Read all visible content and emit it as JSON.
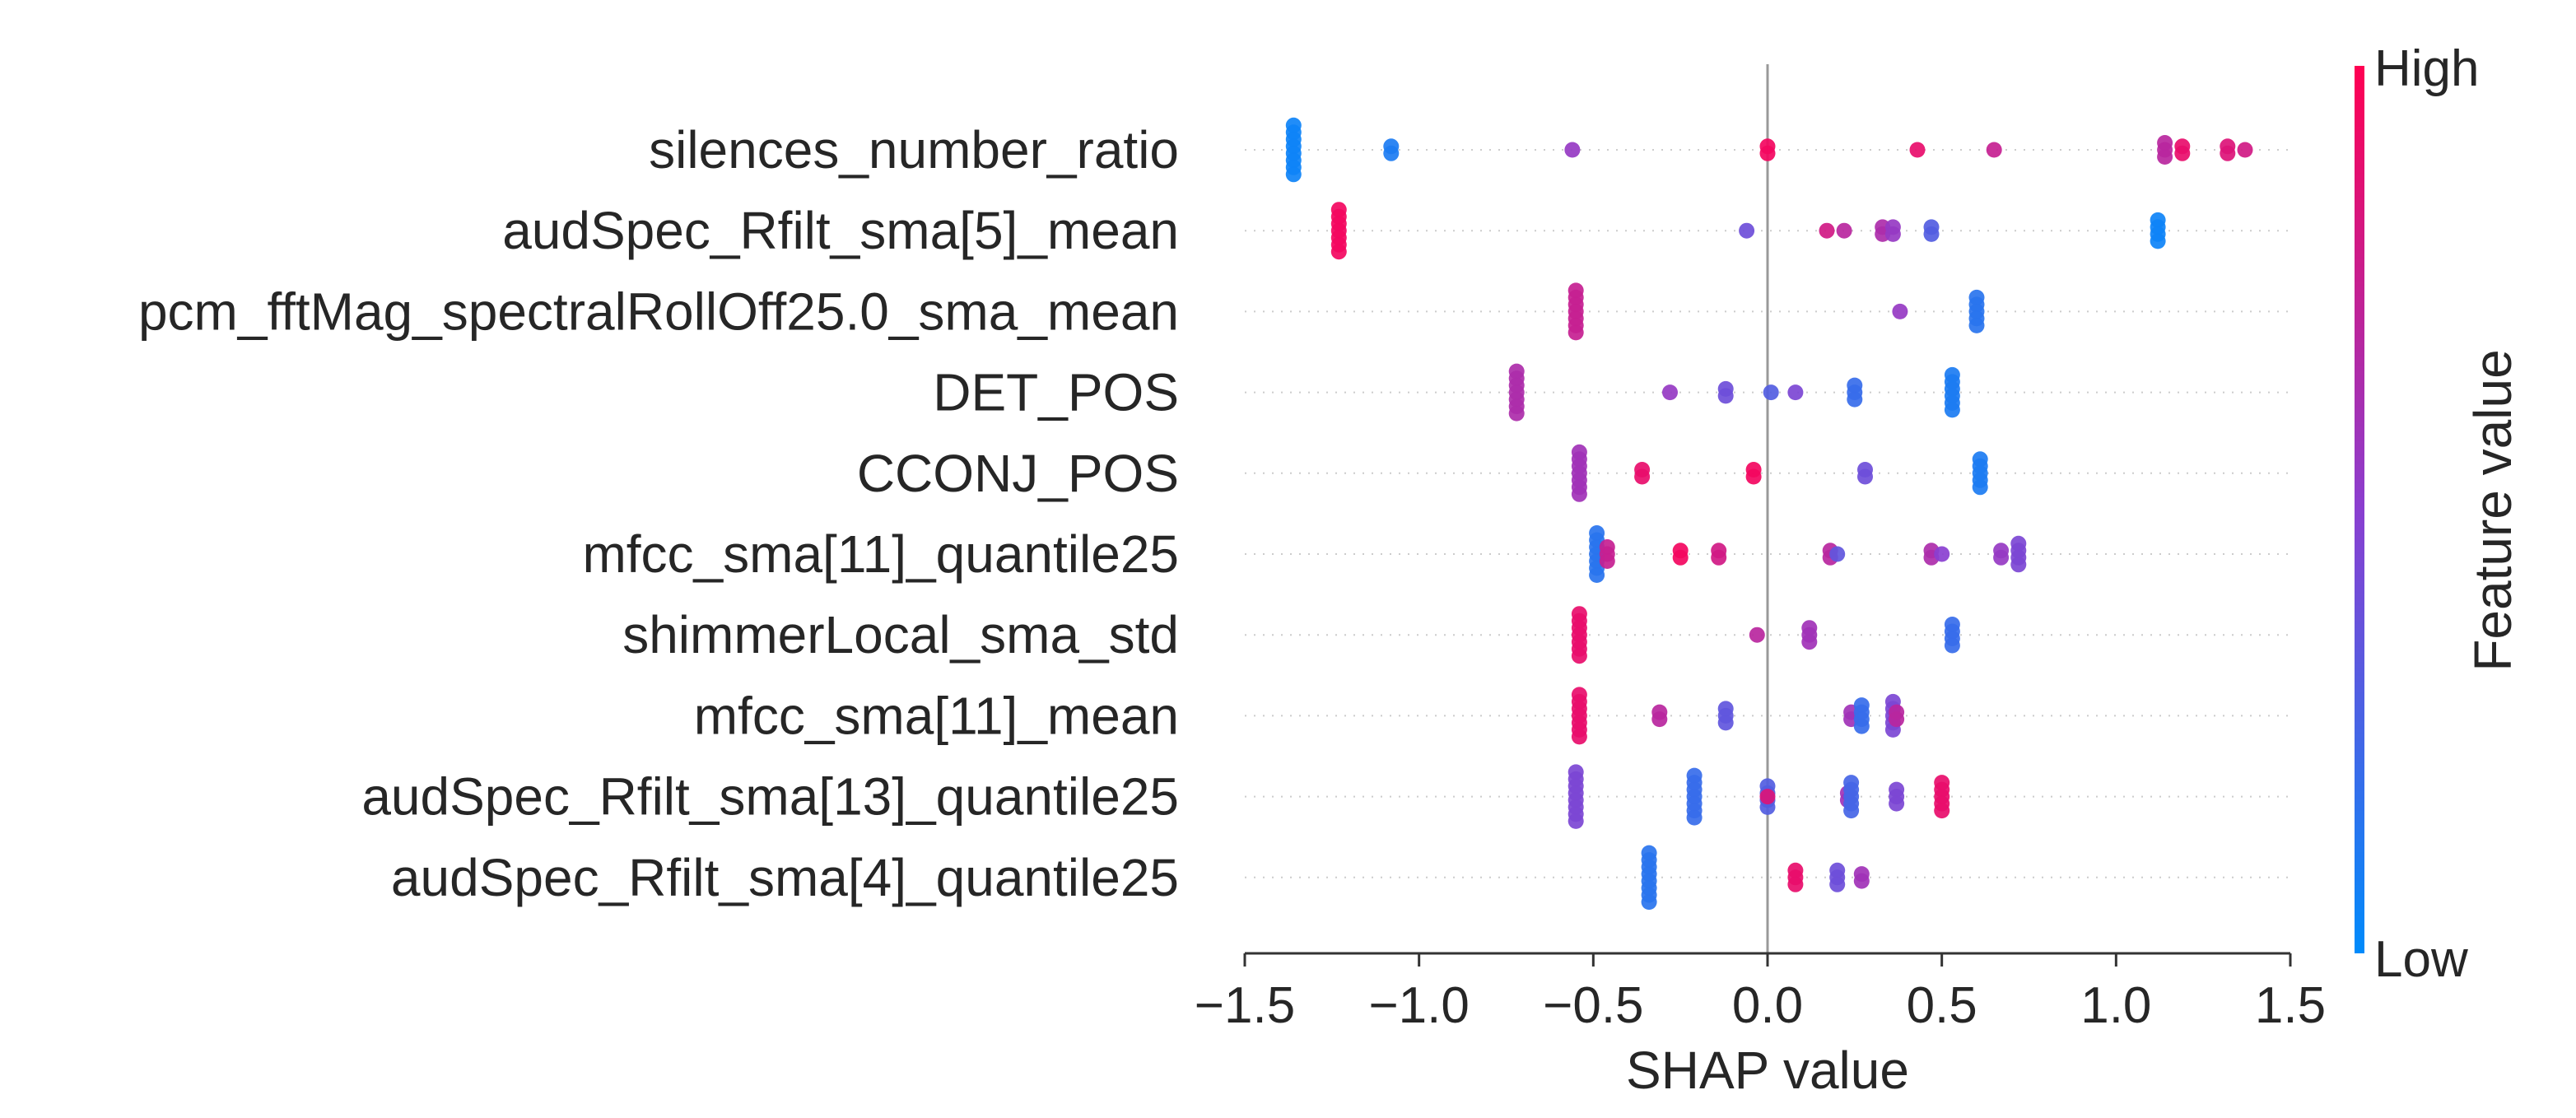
{
  "chart_data": {
    "type": "scatter",
    "subtype": "shap-beeswarm",
    "title": "",
    "xlabel": "SHAP value",
    "ylabel": "",
    "xlim": [
      -1.5,
      1.5
    ],
    "x_ticks": [
      -1.5,
      -1.0,
      -0.5,
      0.0,
      0.5,
      1.0,
      1.5
    ],
    "x_tick_labels": [
      "−1.5",
      "−1.0",
      "−0.5",
      "0.0",
      "0.5",
      "1.0",
      "1.5"
    ],
    "grid": false,
    "colorbar": {
      "title": "Feature value",
      "high_label": "High",
      "low_label": "Low",
      "high_color": "#ff0052",
      "low_color": "#008bfb"
    },
    "features": [
      {
        "name": "silences_number_ratio",
        "points": [
          {
            "x": -1.36,
            "v": 0.05,
            "n": 8
          },
          {
            "x": -1.08,
            "v": 0.1,
            "n": 2
          },
          {
            "x": -0.56,
            "v": 0.55,
            "n": 1
          },
          {
            "x": 0.0,
            "v": 0.95,
            "n": 2
          },
          {
            "x": 0.43,
            "v": 0.9,
            "n": 1
          },
          {
            "x": 0.65,
            "v": 0.75,
            "n": 1
          },
          {
            "x": 1.14,
            "v": 0.7,
            "n": 3
          },
          {
            "x": 1.19,
            "v": 0.9,
            "n": 2
          },
          {
            "x": 1.32,
            "v": 0.85,
            "n": 2
          },
          {
            "x": 1.37,
            "v": 0.8,
            "n": 1
          }
        ]
      },
      {
        "name": "audSpec_Rfilt_sma[5]_mean",
        "points": [
          {
            "x": -1.23,
            "v": 0.95,
            "n": 7
          },
          {
            "x": -0.06,
            "v": 0.4,
            "n": 1
          },
          {
            "x": 0.17,
            "v": 0.8,
            "n": 1
          },
          {
            "x": 0.22,
            "v": 0.7,
            "n": 1
          },
          {
            "x": 0.33,
            "v": 0.65,
            "n": 2
          },
          {
            "x": 0.36,
            "v": 0.55,
            "n": 2
          },
          {
            "x": 0.47,
            "v": 0.3,
            "n": 2
          },
          {
            "x": 1.12,
            "v": 0.05,
            "n": 4
          }
        ]
      },
      {
        "name": "pcm_fftMag_spectralRollOff25.0_sma_mean",
        "points": [
          {
            "x": -0.55,
            "v": 0.75,
            "n": 7
          },
          {
            "x": 0.38,
            "v": 0.55,
            "n": 1
          },
          {
            "x": 0.6,
            "v": 0.15,
            "n": 5
          }
        ]
      },
      {
        "name": "DET_POS",
        "points": [
          {
            "x": -0.72,
            "v": 0.65,
            "n": 7
          },
          {
            "x": -0.28,
            "v": 0.55,
            "n": 1
          },
          {
            "x": -0.12,
            "v": 0.4,
            "n": 2
          },
          {
            "x": 0.01,
            "v": 0.3,
            "n": 1
          },
          {
            "x": 0.08,
            "v": 0.45,
            "n": 1
          },
          {
            "x": 0.25,
            "v": 0.2,
            "n": 3
          },
          {
            "x": 0.53,
            "v": 0.1,
            "n": 6
          }
        ]
      },
      {
        "name": "CCONJ_POS",
        "points": [
          {
            "x": -0.54,
            "v": 0.6,
            "n": 7
          },
          {
            "x": -0.36,
            "v": 0.9,
            "n": 2
          },
          {
            "x": -0.04,
            "v": 0.95,
            "n": 2
          },
          {
            "x": 0.28,
            "v": 0.4,
            "n": 2
          },
          {
            "x": 0.61,
            "v": 0.1,
            "n": 5
          }
        ]
      },
      {
        "name": "mfcc_sma[11]_quantile25",
        "points": [
          {
            "x": -0.49,
            "v": 0.15,
            "n": 7
          },
          {
            "x": -0.46,
            "v": 0.75,
            "n": 3
          },
          {
            "x": -0.25,
            "v": 0.95,
            "n": 2
          },
          {
            "x": -0.14,
            "v": 0.8,
            "n": 2
          },
          {
            "x": 0.18,
            "v": 0.7,
            "n": 2
          },
          {
            "x": 0.2,
            "v": 0.35,
            "n": 1
          },
          {
            "x": 0.47,
            "v": 0.65,
            "n": 2
          },
          {
            "x": 0.5,
            "v": 0.5,
            "n": 1
          },
          {
            "x": 0.67,
            "v": 0.55,
            "n": 2
          },
          {
            "x": 0.72,
            "v": 0.45,
            "n": 4
          }
        ]
      },
      {
        "name": "shimmerLocal_sma_std",
        "points": [
          {
            "x": -0.54,
            "v": 0.9,
            "n": 7
          },
          {
            "x": -0.03,
            "v": 0.7,
            "n": 1
          },
          {
            "x": 0.12,
            "v": 0.6,
            "n": 3
          },
          {
            "x": 0.53,
            "v": 0.2,
            "n": 4
          }
        ]
      },
      {
        "name": "mfcc_sma[11]_mean",
        "points": [
          {
            "x": -0.54,
            "v": 0.9,
            "n": 7
          },
          {
            "x": -0.31,
            "v": 0.7,
            "n": 2
          },
          {
            "x": -0.12,
            "v": 0.35,
            "n": 3
          },
          {
            "x": 0.24,
            "v": 0.6,
            "n": 2
          },
          {
            "x": 0.27,
            "v": 0.2,
            "n": 4
          },
          {
            "x": 0.36,
            "v": 0.45,
            "n": 5
          },
          {
            "x": 0.37,
            "v": 0.7,
            "n": 2
          }
        ]
      },
      {
        "name": "audSpec_Rfilt_sma[13]_quantile25",
        "points": [
          {
            "x": -0.55,
            "v": 0.45,
            "n": 8
          },
          {
            "x": -0.21,
            "v": 0.2,
            "n": 7
          },
          {
            "x": 0.0,
            "v": 0.3,
            "n": 4
          },
          {
            "x": 0.0,
            "v": 0.85,
            "n": 1
          },
          {
            "x": 0.23,
            "v": 0.6,
            "n": 2
          },
          {
            "x": 0.24,
            "v": 0.25,
            "n": 5
          },
          {
            "x": 0.37,
            "v": 0.45,
            "n": 3
          },
          {
            "x": 0.5,
            "v": 0.9,
            "n": 5
          }
        ]
      },
      {
        "name": "audSpec_Rfilt_sma[4]_quantile25",
        "points": [
          {
            "x": -0.34,
            "v": 0.15,
            "n": 8
          },
          {
            "x": 0.08,
            "v": 0.9,
            "n": 3
          },
          {
            "x": 0.2,
            "v": 0.4,
            "n": 3
          },
          {
            "x": 0.27,
            "v": 0.6,
            "n": 2
          }
        ]
      }
    ]
  }
}
